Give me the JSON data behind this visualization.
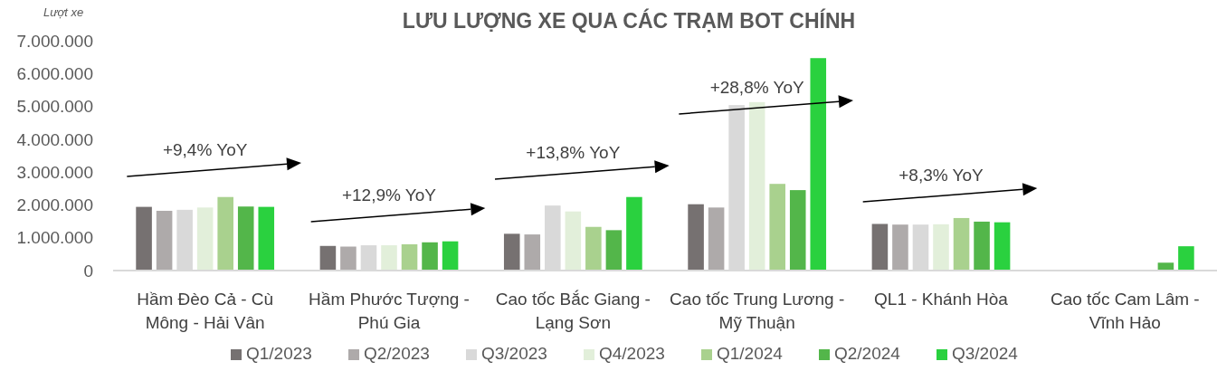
{
  "chart_data": {
    "type": "bar",
    "title": "LƯU LƯỢNG XE QUA CÁC TRẠM BOT CHÍNH",
    "ylabel": "Lượt xe",
    "categories": [
      "Hầm Đèo Cả - Cù Mông - Hải Vân",
      "Hầm Phước Tượng - Phú Gia",
      "Cao tốc Bắc Giang - Lạng Sơn",
      "Cao tốc Trung Lương - Mỹ Thuận",
      "QL1 - Khánh Hòa",
      "Cao tốc Cam Lâm - Vĩnh Hảo"
    ],
    "series": [
      {
        "name": "Q1/2023",
        "color": "#767171",
        "values": [
          1940000,
          750000,
          1120000,
          2020000,
          1420000,
          null
        ]
      },
      {
        "name": "Q2/2023",
        "color": "#aeaaaa",
        "values": [
          1820000,
          730000,
          1100000,
          1920000,
          1400000,
          null
        ]
      },
      {
        "name": "Q3/2023",
        "color": "#d9d9d9",
        "values": [
          1850000,
          770000,
          1980000,
          5040000,
          1400000,
          null
        ]
      },
      {
        "name": "Q4/2023",
        "color": "#e2efda",
        "values": [
          1920000,
          770000,
          1800000,
          5130000,
          1410000,
          null
        ]
      },
      {
        "name": "Q1/2024",
        "color": "#a9d18e",
        "values": [
          2240000,
          800000,
          1330000,
          2640000,
          1600000,
          null
        ]
      },
      {
        "name": "Q2/2024",
        "color": "#53b64a",
        "values": [
          1950000,
          860000,
          1230000,
          2450000,
          1490000,
          240000
        ]
      },
      {
        "name": "Q3/2024",
        "color": "#2ad13f",
        "values": [
          1940000,
          890000,
          2240000,
          6470000,
          1470000,
          740000
        ]
      }
    ],
    "ylim": [
      0,
      7000000
    ],
    "yticks": [
      {
        "value": 0,
        "label": "0"
      },
      {
        "value": 1000000,
        "label": "1.000.000"
      },
      {
        "value": 2000000,
        "label": "2.000.000"
      },
      {
        "value": 3000000,
        "label": "3.000.000"
      },
      {
        "value": 4000000,
        "label": "4.000.000"
      },
      {
        "value": 5000000,
        "label": "5.000.000"
      },
      {
        "value": 6000000,
        "label": "6.000.000"
      },
      {
        "value": 7000000,
        "label": "7.000.000"
      }
    ],
    "grid": false,
    "legend": "bottom",
    "annotations": [
      "+9,4% YoY",
      "+12,9% YoY",
      "+13,8% YoY",
      "+28,8% YoY",
      "+8,3% YoY"
    ]
  }
}
